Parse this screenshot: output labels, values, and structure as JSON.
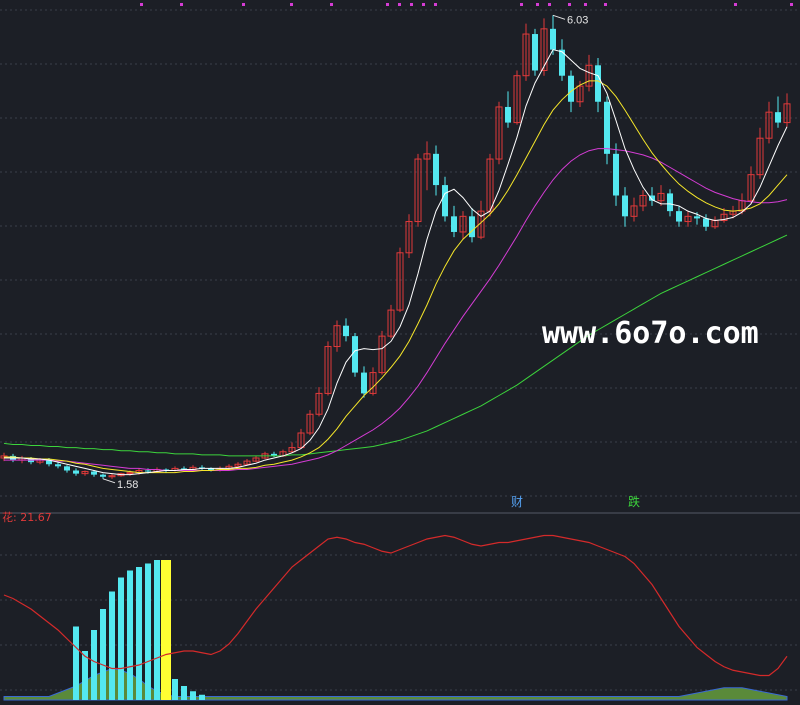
{
  "watermark": "www.6o7o.com",
  "indicator_label": "花: 21.67",
  "colors": {
    "background": "#1c1f26",
    "up": "#e03a3a",
    "down": "#54e8f0",
    "ma_fast": "#ffffff",
    "ma_mid": "#f5e62a",
    "ma_slow": "#d43cd4",
    "ma_long": "#3cd43c",
    "indicator_line": "#d42a2a",
    "indicator_area": "#5a8a3a",
    "indicator_bar": "#54e8f0",
    "highlight_bar": "#ffff33",
    "marker_dot": "#d43cd4"
  },
  "chart_data": [
    {
      "type": "candlestick",
      "price_high_label": "6.03",
      "price_low_label": "1.58",
      "markers": [
        {
          "text": "财",
          "color": "#54a0f0"
        },
        {
          "text": "跌",
          "color": "#3cd43c"
        }
      ],
      "ylim": [
        1.3,
        6.1
      ],
      "candles": [
        [
          1.78,
          1.8,
          1.83,
          1.75
        ],
        [
          1.8,
          1.76,
          1.82,
          1.74
        ],
        [
          1.76,
          1.78,
          1.8,
          1.73
        ],
        [
          1.78,
          1.74,
          1.79,
          1.72
        ],
        [
          1.74,
          1.77,
          1.78,
          1.72
        ],
        [
          1.77,
          1.72,
          1.78,
          1.7
        ],
        [
          1.72,
          1.7,
          1.74,
          1.68
        ],
        [
          1.7,
          1.66,
          1.71,
          1.64
        ],
        [
          1.66,
          1.63,
          1.68,
          1.61
        ],
        [
          1.63,
          1.65,
          1.66,
          1.61
        ],
        [
          1.65,
          1.62,
          1.66,
          1.6
        ],
        [
          1.62,
          1.6,
          1.63,
          1.58
        ],
        [
          1.6,
          1.61,
          1.63,
          1.58
        ],
        [
          1.61,
          1.63,
          1.64,
          1.6
        ],
        [
          1.63,
          1.64,
          1.66,
          1.61
        ],
        [
          1.64,
          1.66,
          1.68,
          1.62
        ],
        [
          1.66,
          1.65,
          1.68,
          1.63
        ],
        [
          1.65,
          1.67,
          1.69,
          1.64
        ],
        [
          1.67,
          1.66,
          1.68,
          1.64
        ],
        [
          1.66,
          1.68,
          1.7,
          1.65
        ],
        [
          1.68,
          1.67,
          1.7,
          1.65
        ],
        [
          1.67,
          1.69,
          1.71,
          1.66
        ],
        [
          1.69,
          1.68,
          1.71,
          1.66
        ],
        [
          1.68,
          1.66,
          1.69,
          1.65
        ],
        [
          1.66,
          1.68,
          1.7,
          1.65
        ],
        [
          1.68,
          1.7,
          1.72,
          1.67
        ],
        [
          1.7,
          1.72,
          1.74,
          1.69
        ],
        [
          1.72,
          1.75,
          1.77,
          1.71
        ],
        [
          1.75,
          1.78,
          1.8,
          1.74
        ],
        [
          1.78,
          1.82,
          1.84,
          1.77
        ],
        [
          1.82,
          1.8,
          1.84,
          1.79
        ],
        [
          1.8,
          1.84,
          1.86,
          1.79
        ],
        [
          1.84,
          1.88,
          1.93,
          1.83
        ],
        [
          1.88,
          2.02,
          2.06,
          1.87
        ],
        [
          2.02,
          2.2,
          2.24,
          2.0
        ],
        [
          2.2,
          2.4,
          2.46,
          2.18
        ],
        [
          2.4,
          2.85,
          2.9,
          2.38
        ],
        [
          2.85,
          3.05,
          3.1,
          2.8
        ],
        [
          3.05,
          2.95,
          3.12,
          2.9
        ],
        [
          2.95,
          2.6,
          2.98,
          2.56
        ],
        [
          2.6,
          2.4,
          2.66,
          2.36
        ],
        [
          2.4,
          2.6,
          2.65,
          2.38
        ],
        [
          2.6,
          2.95,
          3.0,
          2.58
        ],
        [
          2.95,
          3.2,
          3.25,
          2.93
        ],
        [
          3.2,
          3.75,
          3.8,
          3.18
        ],
        [
          3.75,
          4.05,
          4.12,
          3.7
        ],
        [
          4.05,
          4.65,
          4.7,
          4.0
        ],
        [
          4.65,
          4.7,
          4.82,
          4.35
        ],
        [
          4.7,
          4.4,
          4.78,
          4.3
        ],
        [
          4.4,
          4.1,
          4.48,
          4.05
        ],
        [
          4.1,
          3.95,
          4.2,
          3.9
        ],
        [
          3.95,
          4.1,
          4.15,
          3.88
        ],
        [
          4.1,
          3.9,
          4.18,
          3.85
        ],
        [
          3.9,
          4.15,
          4.25,
          3.88
        ],
        [
          4.15,
          4.65,
          4.7,
          4.1
        ],
        [
          4.65,
          5.15,
          5.2,
          4.6
        ],
        [
          5.15,
          5.0,
          5.3,
          4.95
        ],
        [
          5.0,
          5.45,
          5.5,
          4.98
        ],
        [
          5.45,
          5.85,
          5.95,
          5.4
        ],
        [
          5.85,
          5.5,
          5.9,
          5.45
        ],
        [
          5.5,
          5.9,
          6.0,
          5.45
        ],
        [
          5.9,
          5.7,
          6.03,
          5.65
        ],
        [
          5.7,
          5.45,
          5.8,
          5.4
        ],
        [
          5.45,
          5.2,
          5.5,
          5.1
        ],
        [
          5.2,
          5.35,
          5.4,
          5.15
        ],
        [
          5.35,
          5.55,
          5.65,
          5.3
        ],
        [
          5.55,
          5.2,
          5.62,
          5.1
        ],
        [
          5.2,
          4.7,
          5.25,
          4.6
        ],
        [
          4.7,
          4.3,
          4.8,
          4.2
        ],
        [
          4.3,
          4.1,
          4.38,
          4.0
        ],
        [
          4.1,
          4.2,
          4.28,
          4.05
        ],
        [
          4.2,
          4.3,
          4.35,
          4.15
        ],
        [
          4.3,
          4.25,
          4.38,
          4.2
        ],
        [
          4.25,
          4.32,
          4.4,
          4.2
        ],
        [
          4.32,
          4.15,
          4.36,
          4.1
        ],
        [
          4.15,
          4.05,
          4.2,
          4.0
        ],
        [
          4.05,
          4.1,
          4.15,
          4.0
        ],
        [
          4.1,
          4.08,
          4.14,
          4.02
        ],
        [
          4.08,
          4.0,
          4.12,
          3.96
        ],
        [
          4.0,
          4.06,
          4.1,
          3.98
        ],
        [
          4.06,
          4.12,
          4.18,
          4.04
        ],
        [
          4.12,
          4.15,
          4.2,
          4.08
        ],
        [
          4.15,
          4.25,
          4.32,
          4.12
        ],
        [
          4.25,
          4.5,
          4.58,
          4.22
        ],
        [
          4.5,
          4.85,
          4.95,
          4.46
        ],
        [
          4.85,
          5.1,
          5.2,
          4.8
        ],
        [
          5.1,
          5.0,
          5.25,
          4.95
        ],
        [
          5.0,
          5.18,
          5.28,
          4.96
        ]
      ],
      "ma_fast": [
        1.78,
        1.78,
        1.78,
        1.77,
        1.77,
        1.76,
        1.74,
        1.72,
        1.7,
        1.68,
        1.66,
        1.64,
        1.63,
        1.62,
        1.62,
        1.63,
        1.64,
        1.65,
        1.66,
        1.66,
        1.67,
        1.67,
        1.68,
        1.68,
        1.68,
        1.68,
        1.69,
        1.71,
        1.73,
        1.76,
        1.78,
        1.8,
        1.83,
        1.87,
        1.95,
        2.07,
        2.25,
        2.5,
        2.7,
        2.81,
        2.83,
        2.82,
        2.83,
        2.9,
        3.04,
        3.25,
        3.55,
        3.88,
        4.15,
        4.32,
        4.36,
        4.28,
        4.17,
        4.1,
        4.15,
        4.35,
        4.6,
        4.86,
        5.16,
        5.38,
        5.54,
        5.7,
        5.68,
        5.6,
        5.52,
        5.48,
        5.45,
        5.28,
        5.02,
        4.75,
        4.55,
        4.38,
        4.26,
        4.22,
        4.22,
        4.2,
        4.15,
        4.12,
        4.08,
        4.06,
        4.07,
        4.09,
        4.14,
        4.22,
        4.38,
        4.58,
        4.78,
        4.96
      ],
      "ma_mid": [
        1.79,
        1.79,
        1.78,
        1.78,
        1.77,
        1.77,
        1.76,
        1.75,
        1.73,
        1.72,
        1.7,
        1.68,
        1.67,
        1.66,
        1.65,
        1.64,
        1.64,
        1.64,
        1.64,
        1.64,
        1.65,
        1.65,
        1.66,
        1.66,
        1.67,
        1.67,
        1.68,
        1.68,
        1.69,
        1.71,
        1.72,
        1.74,
        1.76,
        1.79,
        1.83,
        1.88,
        1.96,
        2.06,
        2.18,
        2.28,
        2.38,
        2.46,
        2.55,
        2.65,
        2.76,
        2.9,
        3.07,
        3.25,
        3.45,
        3.62,
        3.77,
        3.88,
        3.96,
        4.04,
        4.12,
        4.22,
        4.35,
        4.5,
        4.66,
        4.82,
        4.98,
        5.12,
        5.22,
        5.3,
        5.36,
        5.4,
        5.4,
        5.35,
        5.25,
        5.12,
        4.98,
        4.84,
        4.71,
        4.6,
        4.5,
        4.41,
        4.34,
        4.28,
        4.23,
        4.19,
        4.16,
        4.15,
        4.16,
        4.18,
        4.22,
        4.3,
        4.4,
        4.5
      ],
      "ma_slow": [
        1.76,
        1.76,
        1.76,
        1.76,
        1.76,
        1.76,
        1.75,
        1.75,
        1.74,
        1.73,
        1.72,
        1.71,
        1.7,
        1.69,
        1.68,
        1.68,
        1.67,
        1.67,
        1.66,
        1.66,
        1.66,
        1.66,
        1.66,
        1.66,
        1.66,
        1.66,
        1.67,
        1.67,
        1.68,
        1.69,
        1.7,
        1.71,
        1.72,
        1.74,
        1.76,
        1.78,
        1.81,
        1.85,
        1.9,
        1.95,
        2.0,
        2.05,
        2.11,
        2.18,
        2.26,
        2.36,
        2.47,
        2.6,
        2.74,
        2.88,
        3.01,
        3.14,
        3.26,
        3.38,
        3.5,
        3.63,
        3.77,
        3.91,
        4.06,
        4.2,
        4.33,
        4.45,
        4.55,
        4.63,
        4.69,
        4.73,
        4.75,
        4.75,
        4.74,
        4.73,
        4.71,
        4.69,
        4.66,
        4.62,
        4.57,
        4.52,
        4.47,
        4.42,
        4.37,
        4.33,
        4.3,
        4.27,
        4.25,
        4.24,
        4.23,
        4.23,
        4.24,
        4.26
      ],
      "ma_long": [
        1.92,
        1.91,
        1.91,
        1.9,
        1.9,
        1.89,
        1.89,
        1.88,
        1.88,
        1.87,
        1.87,
        1.86,
        1.86,
        1.85,
        1.85,
        1.84,
        1.84,
        1.83,
        1.83,
        1.82,
        1.82,
        1.82,
        1.81,
        1.81,
        1.81,
        1.8,
        1.8,
        1.8,
        1.8,
        1.8,
        1.8,
        1.8,
        1.81,
        1.81,
        1.82,
        1.83,
        1.84,
        1.85,
        1.86,
        1.87,
        1.88,
        1.89,
        1.91,
        1.93,
        1.95,
        1.98,
        2.01,
        2.04,
        2.08,
        2.12,
        2.16,
        2.2,
        2.24,
        2.28,
        2.33,
        2.38,
        2.43,
        2.48,
        2.54,
        2.6,
        2.66,
        2.72,
        2.78,
        2.84,
        2.9,
        2.96,
        3.01,
        3.06,
        3.11,
        3.16,
        3.21,
        3.26,
        3.31,
        3.36,
        3.4,
        3.44,
        3.48,
        3.52,
        3.56,
        3.6,
        3.64,
        3.68,
        3.72,
        3.76,
        3.8,
        3.84,
        3.88,
        3.92
      ]
    },
    {
      "type": "area",
      "name": "花",
      "ylim": [
        0,
        100
      ],
      "line": [
        60,
        58,
        55,
        52,
        48,
        44,
        40,
        35,
        30,
        25,
        22,
        20,
        18,
        18,
        19,
        20,
        22,
        24,
        26,
        27,
        28,
        28,
        27,
        26,
        28,
        32,
        38,
        45,
        52,
        58,
        64,
        70,
        76,
        80,
        84,
        88,
        92,
        93,
        92,
        90,
        89,
        87,
        85,
        84,
        86,
        88,
        90,
        92,
        93,
        94,
        93,
        91,
        89,
        88,
        89,
        90,
        90,
        91,
        92,
        93,
        94,
        94,
        93,
        92,
        91,
        90,
        88,
        86,
        84,
        82,
        78,
        72,
        66,
        58,
        50,
        42,
        36,
        30,
        26,
        22,
        19,
        17,
        16,
        15,
        14,
        14,
        18,
        25
      ],
      "area": [
        2,
        2,
        2,
        2,
        2,
        2,
        4,
        6,
        8,
        11,
        14,
        16,
        18,
        17,
        15,
        12,
        8,
        5,
        3,
        2,
        2,
        2,
        2,
        2,
        2,
        2,
        2,
        2,
        2,
        2,
        2,
        2,
        2,
        2,
        2,
        2,
        2,
        2,
        2,
        2,
        2,
        2,
        2,
        2,
        2,
        2,
        2,
        2,
        2,
        2,
        2,
        2,
        2,
        2,
        2,
        2,
        2,
        2,
        2,
        2,
        2,
        2,
        2,
        2,
        2,
        2,
        2,
        2,
        2,
        2,
        2,
        2,
        2,
        2,
        2,
        2,
        3,
        4,
        5,
        6,
        7,
        7,
        7,
        6,
        5,
        4,
        3,
        2
      ],
      "bars": [
        0,
        0,
        0,
        0,
        0,
        0,
        0,
        0,
        42,
        28,
        40,
        52,
        62,
        70,
        74,
        76,
        78,
        80,
        80,
        12,
        8,
        5,
        3,
        0,
        0,
        0,
        0,
        0,
        0,
        0,
        0,
        0,
        0,
        0,
        0,
        0,
        0,
        0,
        0,
        0,
        0,
        0,
        0,
        0,
        0,
        0,
        0,
        0,
        0,
        0,
        0,
        0,
        0,
        0,
        0,
        0,
        0,
        0,
        0,
        0,
        0,
        0,
        0,
        0,
        0,
        0,
        0,
        0,
        0,
        0,
        0,
        0,
        0,
        0,
        0,
        0,
        0,
        0,
        0,
        0,
        0,
        0,
        0,
        0,
        0,
        0,
        0,
        0
      ],
      "highlight_index": 18
    }
  ]
}
